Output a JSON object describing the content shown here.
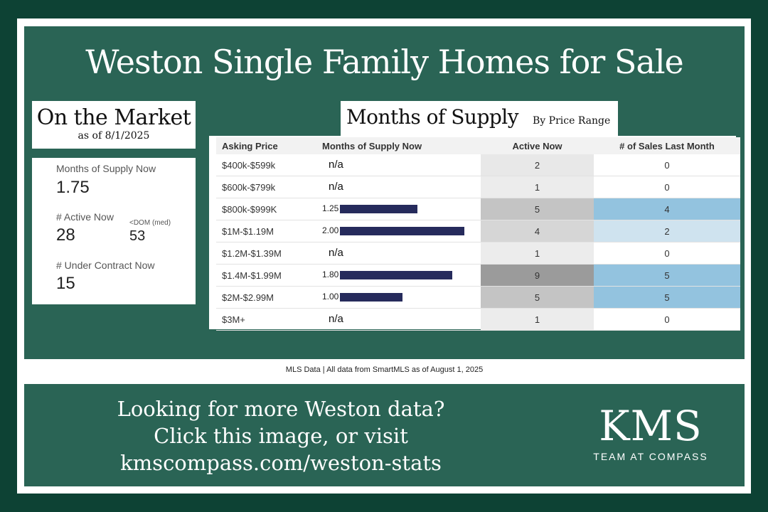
{
  "title": "Weston Single Family Homes for Sale",
  "on_market": {
    "title": "On the Market",
    "asof": "as of 8/1/2025"
  },
  "stats": {
    "mos_label": "Months of Supply Now",
    "mos_value": "1.75",
    "active_label": "# Active Now",
    "active_value": "28",
    "dom_label": "<DOM (med)",
    "dom_value": "53",
    "contract_label": "# Under Contract Now",
    "contract_value": "15"
  },
  "supply": {
    "title": "Months of Supply",
    "subtitle": "By Price Range",
    "headers": [
      "Asking Price",
      "Months of Supply Now",
      "Active Now",
      "# of Sales Last Month"
    ],
    "rows": [
      {
        "range": "$400k-$599k",
        "mos": "n/a",
        "mos_value": null,
        "active": "2",
        "sales": "0"
      },
      {
        "range": "$600k-$799k",
        "mos": "n/a",
        "mos_value": null,
        "active": "1",
        "sales": "0"
      },
      {
        "range": "$800k-$999K",
        "mos": "1.25",
        "mos_value": 1.25,
        "active": "5",
        "sales": "4"
      },
      {
        "range": "$1M-$1.19M",
        "mos": "2.00",
        "mos_value": 2.0,
        "active": "4",
        "sales": "2"
      },
      {
        "range": "$1.2M-$1.39M",
        "mos": "n/a",
        "mos_value": null,
        "active": "1",
        "sales": "0"
      },
      {
        "range": "$1.4M-$1.99M",
        "mos": "1.80",
        "mos_value": 1.8,
        "active": "9",
        "sales": "5"
      },
      {
        "range": "$2M-$2.99M",
        "mos": "1.00",
        "mos_value": 1.0,
        "active": "5",
        "sales": "5"
      },
      {
        "range": "$3M+",
        "mos": "n/a",
        "mos_value": null,
        "active": "1",
        "sales": "0"
      }
    ],
    "colors": {
      "bar": "#262b5c",
      "active_shades": {
        "1": "#ececec",
        "2": "#e8e8e8",
        "4": "#d6d6d6",
        "5": "#c4c4c4",
        "9": "#9b9b9b"
      },
      "sales_shades": {
        "0": "#ffffff",
        "2": "#cfe3ef",
        "4": "#93c3df",
        "5": "#93c3df"
      }
    }
  },
  "footnote": "MLS Data | All data from SmartMLS as of August 1, 2025",
  "cta": {
    "line1": "Looking for more Weston data?",
    "line2": "Click this image, or visit",
    "line3": "kmscompass.com/weston-stats"
  },
  "logo": {
    "mark": "KMS",
    "sub": "TEAM AT COMPASS"
  }
}
